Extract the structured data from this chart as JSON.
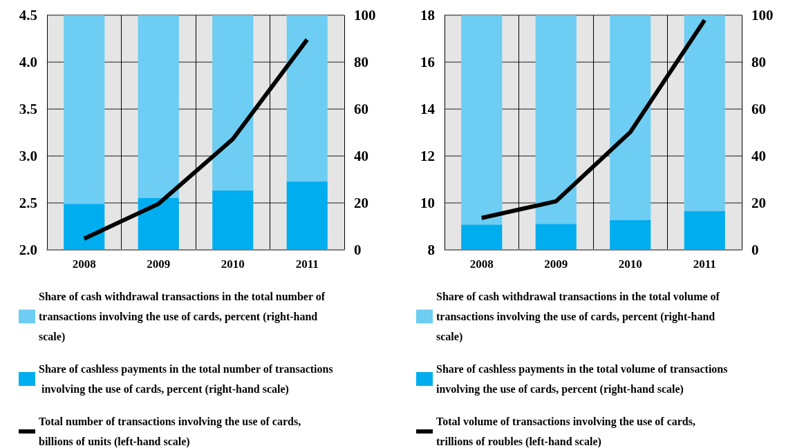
{
  "chart_data": [
    {
      "type": "bar",
      "categories": [
        "2008",
        "2009",
        "2010",
        "2011"
      ],
      "stacked": true,
      "grid": true,
      "legend": "bottom",
      "marker": "none",
      "line_style": "solid",
      "ylim": [
        2.0,
        4.5
      ],
      "yticks": [
        {
          "value": 2.0,
          "label": "2.0"
        },
        {
          "value": 2.5,
          "label": "2.5"
        },
        {
          "value": 3.0,
          "label": "3.0"
        },
        {
          "value": 3.5,
          "label": "3.5"
        },
        {
          "value": 4.0,
          "label": "4.0"
        },
        {
          "value": 4.5,
          "label": "4.5"
        }
      ],
      "y2lim": [
        0,
        100
      ],
      "y2ticks": [
        0,
        20,
        40,
        60,
        80,
        100
      ],
      "series": [
        {
          "axis": "y2",
          "name": "Share of cashless payments in the total number of transactions involving the use of cards, percent (right-hand scale)",
          "color": "#00adee",
          "values": [
            19.6,
            22.2,
            25.4,
            29.2
          ]
        },
        {
          "axis": "y2",
          "name": "Share of cash withdrawal transactions in the total number of transactions involving the use of cards, percent (right-hand scale)",
          "color": "#6dcdf3",
          "values": [
            80.4,
            77.8,
            74.6,
            70.8
          ]
        },
        {
          "type": "line",
          "axis": "y",
          "name": "Total number of transactions involving the use of cards, billions of units (left-hand scale)",
          "color": "#000000",
          "values": [
            2.12,
            2.49,
            3.18,
            4.24
          ]
        }
      ]
    },
    {
      "type": "bar",
      "categories": [
        "2008",
        "2009",
        "2010",
        "2011"
      ],
      "stacked": true,
      "grid": true,
      "legend": "bottom",
      "marker": "none",
      "line_style": "solid",
      "ylim": [
        8,
        18
      ],
      "yticks": [
        8,
        10,
        12,
        14,
        16,
        18
      ],
      "y2lim": [
        0,
        100
      ],
      "y2ticks": [
        0,
        20,
        40,
        60,
        80,
        100
      ],
      "series": [
        {
          "axis": "y2",
          "name": "Share of cashless payments in the total volume of transactions involving the use of cards, percent (right-hand scale)",
          "color": "#00adee",
          "values": [
            10.8,
            11.1,
            12.8,
            16.5
          ]
        },
        {
          "axis": "y2",
          "name": "Share of cash withdrawal transactions in the total volume of transactions involving the use of cards, percent (right-hand scale)",
          "color": "#6dcdf3",
          "values": [
            89.2,
            88.9,
            87.2,
            83.5
          ]
        },
        {
          "type": "line",
          "axis": "y",
          "name": "Total volume of transactions involving the use of cards, trillions of roubles (left-hand scale)",
          "color": "#000000",
          "values": [
            9.36,
            10.07,
            13.02,
            17.79
          ]
        }
      ]
    }
  ]
}
